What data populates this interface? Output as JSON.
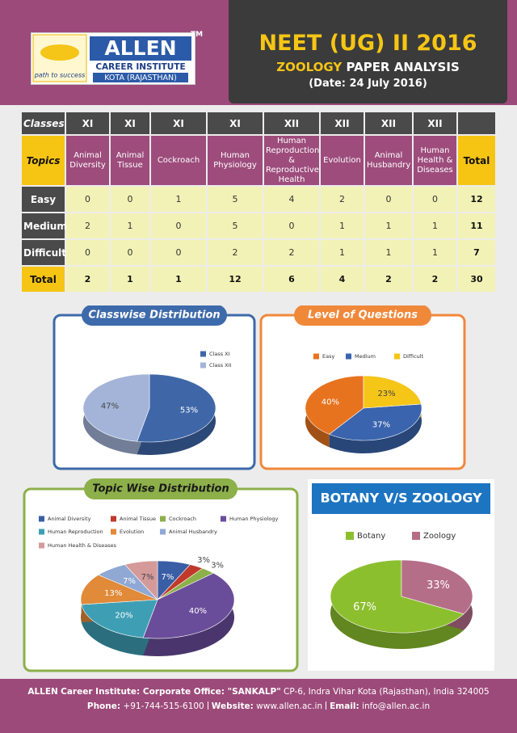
{
  "header": {
    "logo": "ALLEN",
    "trademark": "TM",
    "institute": "CAREER INSTITUTE",
    "location": "KOTA (RAJASTHAN)",
    "tagline": "path to success",
    "title": "NEET (UG) II 2016",
    "subject": "ZOOLOGY",
    "subtitle": "PAPER ANALYSIS",
    "date": "(Date: 24 July 2016)"
  },
  "table": {
    "classes_label": "Classes",
    "classes": [
      "XI",
      "XI",
      "XI",
      "XI",
      "XII",
      "XII",
      "XII",
      "XII"
    ],
    "topics_label": "Topics",
    "topics": [
      "Animal Diversity",
      "Animal Tissue",
      "Cockroach",
      "Human Physiology",
      "Human Reproduction & Reproductive Health",
      "Evolution",
      "Animal Husbandry",
      "Human Health & Diseases"
    ],
    "total_label": "Total",
    "rows": [
      {
        "label": "Easy",
        "values": [
          0,
          0,
          1,
          5,
          4,
          2,
          0,
          0
        ],
        "total": 12
      },
      {
        "label": "Medium",
        "values": [
          2,
          1,
          0,
          5,
          0,
          1,
          1,
          1
        ],
        "total": 11
      },
      {
        "label": "Difficult",
        "values": [
          0,
          0,
          0,
          2,
          2,
          1,
          1,
          1
        ],
        "total": 7
      },
      {
        "label": "Total",
        "values": [
          2,
          1,
          1,
          12,
          6,
          4,
          2,
          2
        ],
        "total": 30
      }
    ]
  },
  "chart_data": [
    {
      "type": "pie",
      "title": "Classwise Distribution",
      "categories": [
        "Class XI",
        "Class XII"
      ],
      "values": [
        53,
        47
      ],
      "value_labels": [
        "53%",
        "47%"
      ],
      "colors": [
        "#3f67a8",
        "#a3b4d8"
      ]
    },
    {
      "type": "pie",
      "title": "Level of Questions",
      "categories": [
        "Easy",
        "Medium",
        "Difficult"
      ],
      "values": [
        40,
        37,
        23
      ],
      "value_labels": [
        "40%",
        "37%",
        "23%"
      ],
      "colors": [
        "#e8731f",
        "#3a64ad",
        "#f5c518"
      ]
    },
    {
      "type": "pie",
      "title": "Topic Wise Distribution",
      "categories": [
        "Animal Diversity",
        "Animal Tissue",
        "Cockroach",
        "Human Physiology",
        "Human Reproduction",
        "Evolution",
        "Animal Husbandry",
        "Human Health & Diseases"
      ],
      "values": [
        7,
        3,
        3,
        40,
        20,
        13,
        7,
        7
      ],
      "value_labels": [
        "7%",
        "3%",
        "3%",
        "40%",
        "20%",
        "13%",
        "7%",
        "7%"
      ],
      "colors": [
        "#3a5ea6",
        "#c0392b",
        "#8db04a",
        "#6a4d9a",
        "#3e9fb4",
        "#e08a3a",
        "#90a8d4",
        "#d49a9a"
      ]
    },
    {
      "type": "pie",
      "title": "BOTANY V/S ZOOLOGY",
      "categories": [
        "Botany",
        "Zoology"
      ],
      "values": [
        67,
        33
      ],
      "value_labels": [
        "67%",
        "33%"
      ],
      "colors": [
        "#8cbf2e",
        "#b56e88"
      ]
    }
  ],
  "footer": {
    "brand": "ALLEN",
    "office": "Career Institute: Corporate Office: \"SANKALP\"",
    "address": "CP-6, Indra Vihar Kota (Rajasthan), India 324005",
    "phone_label": "Phone:",
    "phone": "+91-744-515-6100",
    "website_label": "Website:",
    "website": "www.allen.ac.in",
    "email_label": "Email:",
    "email": "info@allen.ac.in"
  }
}
